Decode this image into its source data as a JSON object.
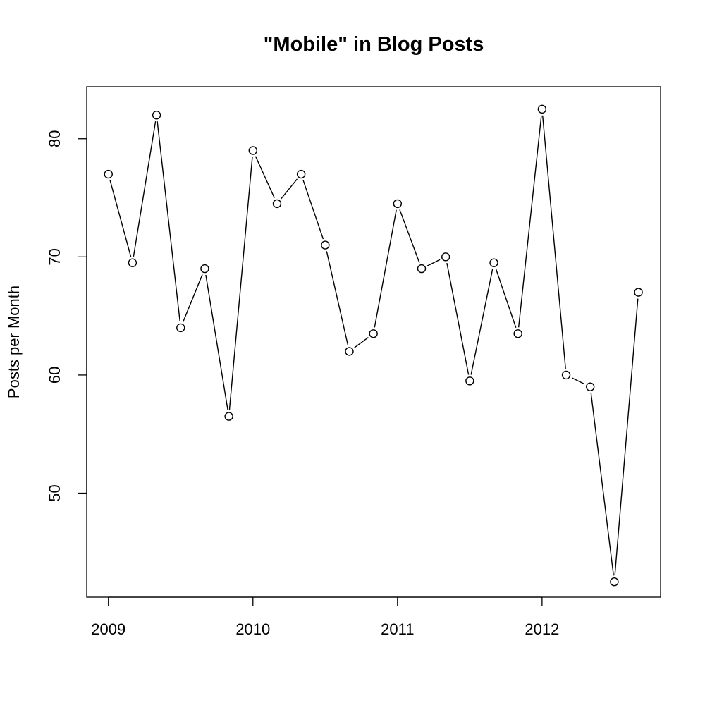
{
  "chart_data": {
    "type": "line",
    "title": "\"Mobile\" in Blog Posts",
    "xlabel": "",
    "ylabel": "Posts per Month",
    "x": [
      2009.0,
      2009.1667,
      2009.3333,
      2009.5,
      2009.6667,
      2009.8333,
      2010.0,
      2010.1667,
      2010.3333,
      2010.5,
      2010.6667,
      2010.8333,
      2011.0,
      2011.1667,
      2011.3333,
      2011.5,
      2011.6667,
      2011.8333,
      2012.0,
      2012.1667,
      2012.3333,
      2012.5,
      2012.6667
    ],
    "series": [
      {
        "values": [
          77,
          69.5,
          82,
          64,
          69,
          56.5,
          79,
          74.5,
          77,
          71,
          62,
          63.5,
          74.5,
          69,
          70,
          59.5,
          69.5,
          63.5,
          82.5,
          60,
          59,
          42.5,
          67
        ]
      }
    ],
    "xticks": [
      2009,
      2010,
      2011,
      2012
    ],
    "xtick_labels": [
      "2009",
      "2010",
      "2011",
      "2012"
    ],
    "yticks": [
      50,
      60,
      70,
      80
    ],
    "ytick_labels": [
      "50",
      "60",
      "70",
      "80"
    ],
    "xlim": [
      2008.85,
      2012.82
    ],
    "ylim": [
      41.2,
      84.4
    ],
    "marker": "open-circle",
    "grid": false,
    "legend": "none",
    "line_color": "#000000",
    "background": "#ffffff"
  }
}
